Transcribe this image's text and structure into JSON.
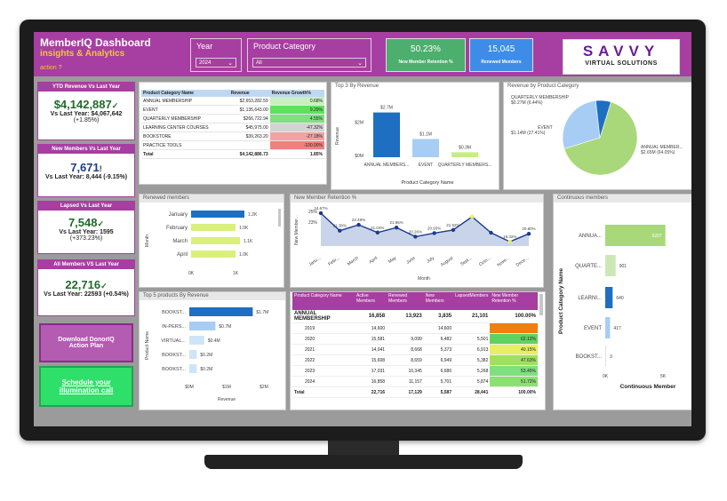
{
  "header": {
    "title": "MemberIQ Dashboard",
    "subtitle": "insights & Analytics",
    "action_label": "action ?"
  },
  "filters": {
    "year": {
      "label": "Year",
      "value": "2024"
    },
    "category": {
      "label": "Product Category",
      "value": "All"
    }
  },
  "top_kpis": {
    "retention": {
      "value": "50.23%",
      "label": "New Member Retention %",
      "color": "#4caf6e"
    },
    "renewed": {
      "value": "15,045",
      "label": "Renewed Members",
      "color": "#3d8de8"
    }
  },
  "logo": {
    "big": "SAVVY",
    "small": "VIRTUAL SOLUTIONS"
  },
  "kpi_cards": [
    {
      "header": "YTD Revenue Vs Last Year",
      "value": "$4,142,887",
      "mark": "✓",
      "sub": "Vs Last Year: $4,067,642",
      "pct": "(+1.85%)"
    },
    {
      "header": "New Members Vs Last Year",
      "value": "7,671",
      "mark": "!",
      "sub": "Vs Last Year: 8,444 (-9.15%)",
      "pct": ""
    },
    {
      "header": "Lapsed Vs Last Year",
      "value": "7,548",
      "mark": "✓",
      "sub": "Vs Last Year: 1595",
      "pct": "(+373.23%)"
    },
    {
      "header": "All Members VS Last Year",
      "value": "22,716",
      "mark": "✓",
      "sub": "Vs Last Year: 22593 (+0.54%)",
      "pct": ""
    }
  ],
  "buttons": {
    "download": "Download DonorIQ Action Plan",
    "schedule": "Schedule your illumination call"
  },
  "revenue_table": {
    "headers": [
      "Product Category Name",
      "Revenue",
      "Revenue Growth%"
    ],
    "rows": [
      [
        "ANNUAL MEMBERSHIP",
        "$2,653,282.59",
        "0.68%"
      ],
      [
        "EVENT",
        "$1,135,643.00",
        "9.29%"
      ],
      [
        "QUARTERLY MEMBERSHIP",
        "$266,722.94",
        "4.55%"
      ],
      [
        "LEARNING CENTER COURSES",
        "$45,975.00",
        "-47.32%"
      ],
      [
        "BOOKSTORE",
        "$39,263.20",
        "-27.18%"
      ],
      [
        "PRACTICE TOOLS",
        "",
        "-100.00%"
      ]
    ],
    "total": [
      "Total",
      "$4,142,886.73",
      "1.85%"
    ],
    "cell_colors": [
      "#c8f0c0",
      "#5fe05f",
      "#7ee07e",
      "#d3d3d3",
      "#f2a2a2",
      "#f08080"
    ]
  },
  "panel_titles": {
    "top3": "Top 3 By Revenue",
    "pie": "Revenue by Product Category",
    "renewed": "Renewed members",
    "retention": "New Member Retention %",
    "continuous": "Continuous members",
    "top5": "Top 5 products By Revenue"
  },
  "member_table": {
    "headers": [
      "Product Category Name",
      "Active Members",
      "Renewed Members",
      "New Members",
      "LapsedMembers",
      "New Member Retention %"
    ],
    "rows": [
      [
        "ANNUAL MEMBERSHIP",
        "16,858",
        "13,923",
        "3,835",
        "21,101",
        "100.00%"
      ],
      [
        "2019",
        "14,600",
        "",
        "14,600",
        "",
        ""
      ],
      [
        "2020",
        "15,581",
        "9,099",
        "6,482",
        "5,501",
        "62.12%"
      ],
      [
        "2021",
        "14,041",
        "8,668",
        "5,373",
        "6,913",
        "40.15%"
      ],
      [
        "2022",
        "15,608",
        "8,659",
        "6,949",
        "5,382",
        "47.63%"
      ],
      [
        "2023",
        "17,031",
        "10,345",
        "6,686",
        "5,268",
        "53.45%"
      ],
      [
        "2024",
        "16,858",
        "11,157",
        "5,701",
        "5,874",
        "51.72%"
      ]
    ],
    "total": [
      "Total",
      "22,716",
      "17,129",
      "5,587",
      "28,441",
      "100.00%"
    ],
    "retention_colors": [
      "",
      "#f07f10",
      "#5fd35f",
      "#e6f060",
      "#9fe060",
      "#7ee07e",
      "#8be070"
    ]
  },
  "chart_data": [
    {
      "type": "bar",
      "title": "Top 3 By Revenue",
      "xlabel": "Product Category Name",
      "ylabel": "Revenue",
      "categories": [
        "ANNUAL MEMBERS...",
        "EVENT",
        "QUARTERLY MEMBERS..."
      ],
      "values": [
        2.7,
        1.1,
        0.3
      ],
      "data_labels": [
        "$2.7M",
        "$1.1M",
        "$0.3M"
      ],
      "y_ticks": [
        "$0M",
        "$2M"
      ],
      "colors": [
        "#1e6fc2",
        "#a8cdf4",
        "#c6ee80"
      ]
    },
    {
      "type": "pie",
      "title": "Revenue by Product Category",
      "labels": [
        "ANNUAL MEMBER...",
        "EVENT",
        "QUARTERLY MEMBERSHIP"
      ],
      "values": [
        64.05,
        27.41,
        6.44
      ],
      "data_labels": [
        "$2.65M (64.05%)",
        "$1.14M (27.41%)",
        "$0.27M (6.44%)"
      ],
      "colors": [
        "#a8d87a",
        "#a8cdf4",
        "#1e6fc2"
      ]
    },
    {
      "type": "bar",
      "title": "Renewed members",
      "ylabel": "Month",
      "categories": [
        "January",
        "February",
        "March",
        "April"
      ],
      "values": [
        1.2,
        1.0,
        1.1,
        1.0
      ],
      "data_labels": [
        "1.2K",
        "1.0K",
        "1.1K",
        "1.0K"
      ],
      "x_ticks": [
        "0K",
        "1K"
      ],
      "colors": [
        "#1e6fc2",
        "#d9f07a",
        "#d9f07a",
        "#d9f07a"
      ]
    },
    {
      "type": "line",
      "title": "New Member Retention %",
      "xlabel": "Month",
      "ylabel": "New Member...",
      "categories": [
        "January",
        "February",
        "March",
        "April",
        "May",
        "June",
        "July",
        "August",
        "September",
        "October",
        "November",
        "December"
      ],
      "values": [
        24.67,
        21.38,
        22.49,
        21.04,
        21.96,
        20.26,
        20.93,
        21.52,
        24.0,
        21.0,
        19.32,
        20.8
      ],
      "data_labels": [
        "24.67%",
        "21.38%",
        "22.49%",
        "21.04%",
        "21.96%",
        "20.26%",
        "20.93%",
        "21.52%",
        "",
        "",
        "19.32%",
        "20.80%"
      ],
      "x_tick_labels": [
        "Janu...",
        "Febr...",
        "March",
        "April",
        "May",
        "June",
        "July",
        "August",
        "Sept...",
        "Octo...",
        "Nove...",
        "Dece..."
      ],
      "y_ticks": [
        "23%",
        "25%"
      ]
    },
    {
      "type": "bar",
      "title": "Continuous members",
      "xlabel": "Continuous Member",
      "ylabel": "Product Category Name",
      "categories": [
        "ANNUA...",
        "QUARTE...",
        "LEARNI...",
        "EVENT",
        "BOOKST..."
      ],
      "values": [
        5207,
        901,
        640,
        417,
        3
      ],
      "data_labels": [
        "5207",
        "901",
        "640",
        "417",
        "3"
      ],
      "x_ticks": [
        "0K",
        "5K"
      ],
      "colors": [
        "#a8d87a",
        "#cde8b5",
        "#1e6fc2",
        "#a8cdf4",
        "#e0e0e0"
      ]
    },
    {
      "type": "bar",
      "title": "Top 5 products By Revenue",
      "xlabel": "Revenue",
      "ylabel": "Product Name",
      "categories": [
        "BOOKST...",
        "IN-PERS...",
        "VIRTUAL...",
        "BOOKST...",
        "BOOKST..."
      ],
      "values": [
        1.7,
        0.7,
        0.4,
        0.2,
        0.2
      ],
      "data_labels": [
        "$1.7M",
        "$0.7M",
        "$0.4M",
        "$0.2M",
        "$0.2M"
      ],
      "x_ticks": [
        "$0M",
        "$1M",
        "$2M"
      ],
      "colors": [
        "#1e6fc2",
        "#a8cdf4",
        "#cfe4f8",
        "#cfe4f8",
        "#cfe4f8"
      ]
    }
  ]
}
